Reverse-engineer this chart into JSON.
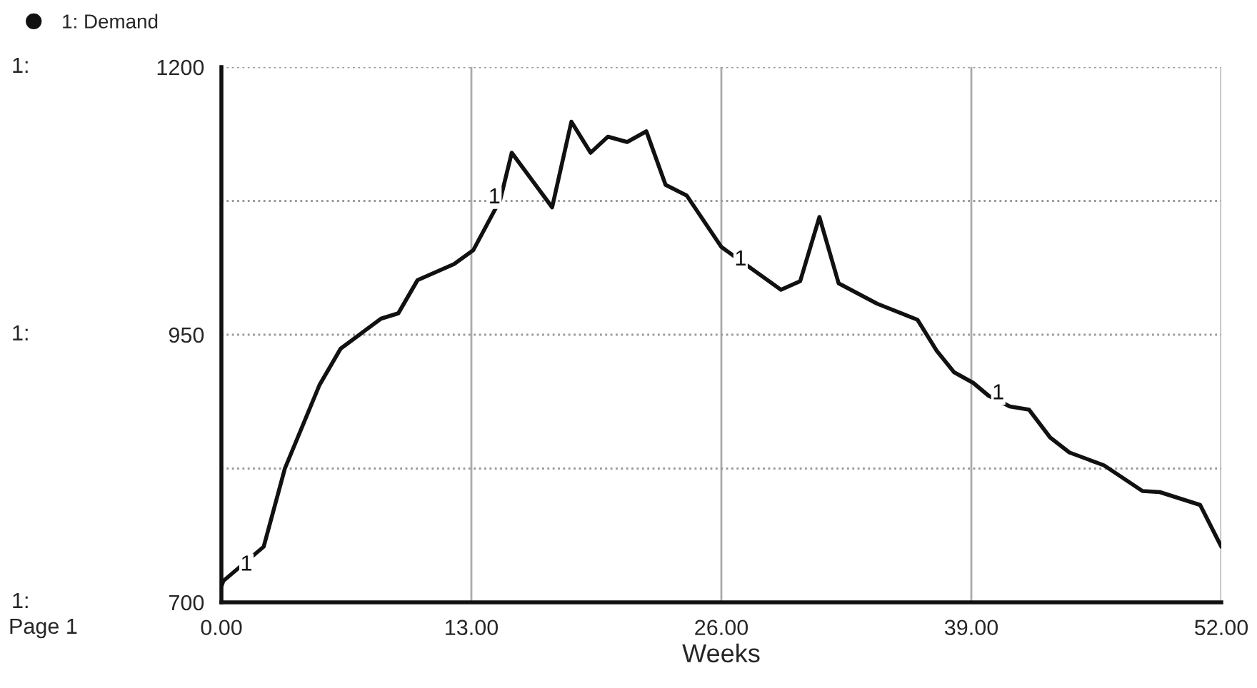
{
  "chart_data": {
    "type": "line",
    "xlabel": "Weeks",
    "x": [
      0,
      0.1,
      2.2,
      3.3,
      5.1,
      6.2,
      8.3,
      9.2,
      10.2,
      12.1,
      13.1,
      14.5,
      15.1,
      17.2,
      18.2,
      19.2,
      20.1,
      21.1,
      22.1,
      23.1,
      24.2,
      26.0,
      29.1,
      30.1,
      31.1,
      32.1,
      34.1,
      36.2,
      37.2,
      38.1,
      39.1,
      39.9,
      41.0,
      42.0,
      43.1,
      44.1,
      45.9,
      47.9,
      48.8,
      50.9,
      52.0
    ],
    "series": [
      {
        "name": "1: Demand",
        "color": "#111111",
        "values": [
          715,
          720,
          752,
          825,
          903,
          937,
          965,
          970,
          1001,
          1016,
          1029,
          1076,
          1120,
          1069,
          1149,
          1120,
          1135,
          1130,
          1140,
          1090,
          1080,
          1032,
          992,
          1000,
          1060,
          998,
          979,
          964,
          935,
          915,
          905,
          893,
          883,
          880,
          854,
          840,
          828,
          804,
          803,
          791,
          752
        ]
      }
    ],
    "xlim": [
      0,
      52
    ],
    "ylim": [
      700,
      1200
    ],
    "xticks": [
      {
        "value": 0,
        "label": "0.00"
      },
      {
        "value": 13,
        "label": "13.00"
      },
      {
        "value": 26,
        "label": "26.00"
      },
      {
        "value": 39,
        "label": "39.00"
      },
      {
        "value": 52,
        "label": "52.00"
      }
    ],
    "yticks": [
      700,
      {
        "value": 825,
        "label": null
      },
      950,
      {
        "value": 1075,
        "label": null
      },
      1200
    ],
    "grid": true,
    "legend": "top left",
    "marker": "none",
    "line_style": "solid",
    "annotations": [
      {
        "text": "1",
        "x": 1.3,
        "y": 735
      },
      {
        "text": "1",
        "x": 14.2,
        "y": 1078
      },
      {
        "text": "1",
        "x": 27.0,
        "y": 1020
      },
      {
        "text": "1",
        "x": 40.4,
        "y": 895
      },
      "1:",
      "1:",
      "1:",
      "Page 1"
    ]
  }
}
